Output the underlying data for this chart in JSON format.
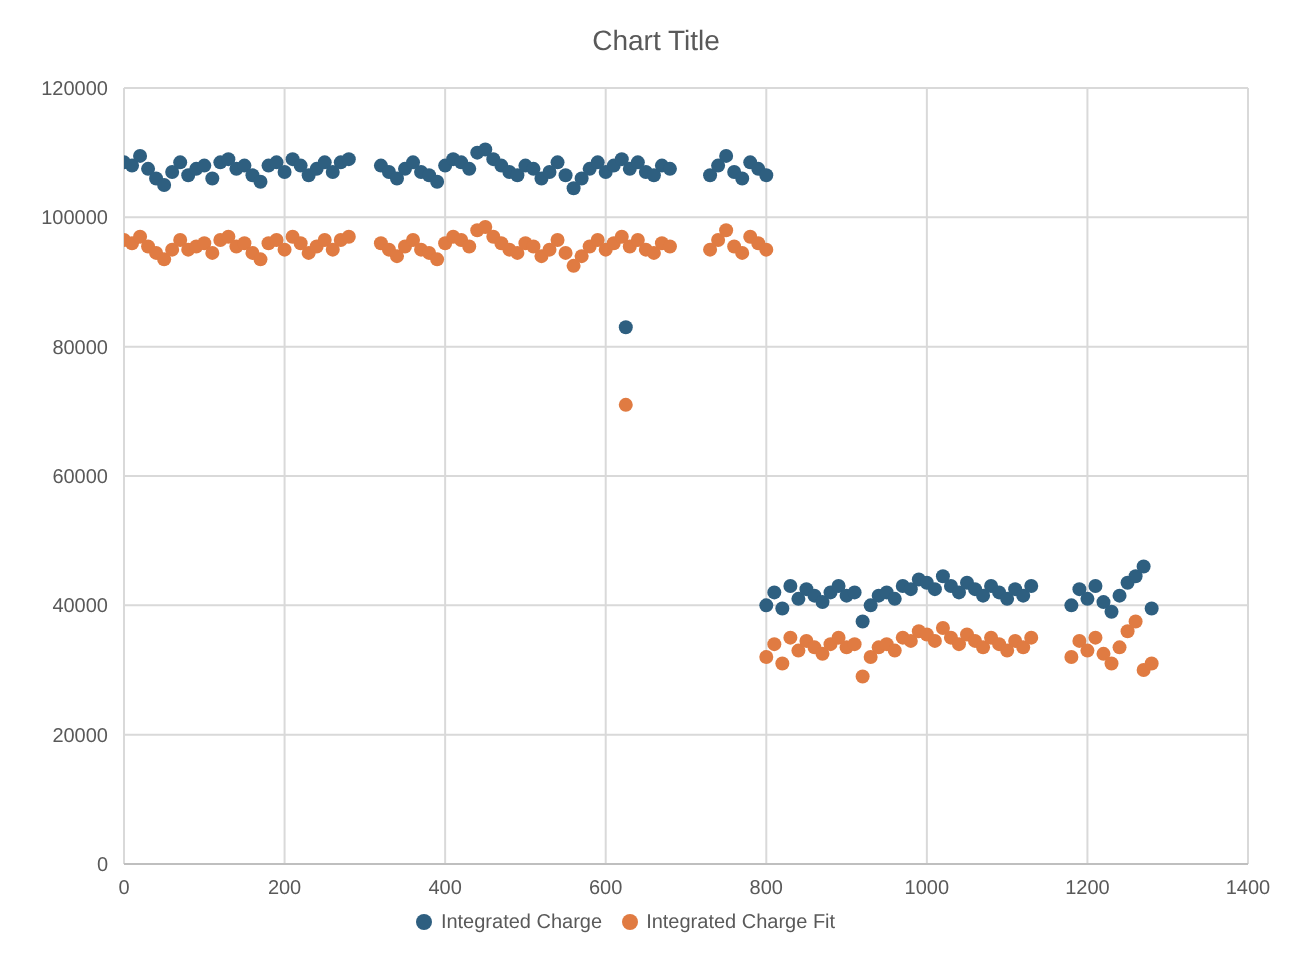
{
  "chart_data": {
    "type": "scatter",
    "title": "Chart Title",
    "xlim": [
      0,
      1400
    ],
    "xticks": [
      0,
      200,
      400,
      600,
      800,
      1000,
      1200,
      1400
    ],
    "ylim": [
      0,
      120000
    ],
    "yticks": [
      0,
      20000,
      40000,
      60000,
      80000,
      100000,
      120000
    ],
    "grid": true,
    "legend": "bottom",
    "marker": "circle",
    "x": [
      0,
      10,
      20,
      30,
      40,
      50,
      60,
      70,
      80,
      90,
      100,
      110,
      120,
      130,
      140,
      150,
      160,
      170,
      180,
      190,
      200,
      210,
      220,
      230,
      240,
      250,
      260,
      270,
      280,
      320,
      330,
      340,
      350,
      360,
      370,
      380,
      390,
      400,
      410,
      420,
      430,
      440,
      450,
      460,
      470,
      480,
      490,
      500,
      510,
      520,
      530,
      540,
      550,
      560,
      570,
      580,
      590,
      600,
      610,
      620,
      630,
      640,
      650,
      660,
      670,
      680,
      625,
      730,
      740,
      750,
      760,
      770,
      780,
      790,
      800,
      800,
      810,
      820,
      830,
      840,
      850,
      860,
      870,
      880,
      890,
      900,
      910,
      920,
      930,
      940,
      950,
      960,
      970,
      980,
      990,
      1000,
      1010,
      1020,
      1030,
      1040,
      1050,
      1060,
      1070,
      1080,
      1090,
      1100,
      1110,
      1120,
      1130,
      1180,
      1190,
      1200,
      1210,
      1220,
      1230,
      1240,
      1250,
      1260,
      1270,
      1280
    ],
    "series": [
      {
        "name": "Integrated Charge",
        "color": "#2e5f80",
        "values": [
          108500,
          108000,
          109500,
          107500,
          106000,
          105000,
          107000,
          108500,
          106500,
          107500,
          108000,
          106000,
          108500,
          109000,
          107500,
          108000,
          106500,
          105500,
          108000,
          108500,
          107000,
          109000,
          108000,
          106500,
          107500,
          108500,
          107000,
          108500,
          109000,
          108000,
          107000,
          106000,
          107500,
          108500,
          107000,
          106500,
          105500,
          108000,
          109000,
          108500,
          107500,
          110000,
          110500,
          109000,
          108000,
          107000,
          106500,
          108000,
          107500,
          106000,
          107000,
          108500,
          106500,
          104500,
          106000,
          107500,
          108500,
          107000,
          108000,
          109000,
          107500,
          108500,
          107000,
          106500,
          108000,
          107500,
          83000,
          106500,
          108000,
          109500,
          107000,
          106000,
          108500,
          107500,
          106500,
          40000,
          42000,
          39500,
          43000,
          41000,
          42500,
          41500,
          40500,
          42000,
          43000,
          41500,
          42000,
          37500,
          40000,
          41500,
          42000,
          41000,
          43000,
          42500,
          44000,
          43500,
          42500,
          44500,
          43000,
          42000,
          43500,
          42500,
          41500,
          43000,
          42000,
          41000,
          42500,
          41500,
          43000,
          40000,
          42500,
          41000,
          43000,
          40500,
          39000,
          41500,
          43500,
          44500,
          46000,
          39500
        ]
      },
      {
        "name": "Integrated Charge Fit",
        "color": "#e07b42",
        "values": [
          96500,
          96000,
          97000,
          95500,
          94500,
          93500,
          95000,
          96500,
          95000,
          95500,
          96000,
          94500,
          96500,
          97000,
          95500,
          96000,
          94500,
          93500,
          96000,
          96500,
          95000,
          97000,
          96000,
          94500,
          95500,
          96500,
          95000,
          96500,
          97000,
          96000,
          95000,
          94000,
          95500,
          96500,
          95000,
          94500,
          93500,
          96000,
          97000,
          96500,
          95500,
          98000,
          98500,
          97000,
          96000,
          95000,
          94500,
          96000,
          95500,
          94000,
          95000,
          96500,
          94500,
          92500,
          94000,
          95500,
          96500,
          95000,
          96000,
          97000,
          95500,
          96500,
          95000,
          94500,
          96000,
          95500,
          71000,
          95000,
          96500,
          98000,
          95500,
          94500,
          97000,
          96000,
          95000,
          32000,
          34000,
          31000,
          35000,
          33000,
          34500,
          33500,
          32500,
          34000,
          35000,
          33500,
          34000,
          29000,
          32000,
          33500,
          34000,
          33000,
          35000,
          34500,
          36000,
          35500,
          34500,
          36500,
          35000,
          34000,
          35500,
          34500,
          33500,
          35000,
          34000,
          33000,
          34500,
          33500,
          35000,
          32000,
          34500,
          33000,
          35000,
          32500,
          31000,
          33500,
          36000,
          37500,
          30000,
          31000
        ]
      }
    ]
  }
}
